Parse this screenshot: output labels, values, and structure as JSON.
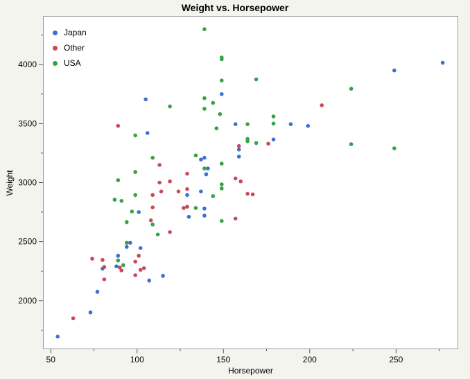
{
  "title": "Weight vs. Horsepower",
  "axes": {
    "x": {
      "label": "Horsepower",
      "major_ticks": [
        50,
        100,
        150,
        200,
        250
      ],
      "minor_ticks": [
        75,
        125,
        175,
        225,
        275
      ]
    },
    "y": {
      "label": "Weight",
      "major_ticks": [
        2000,
        2500,
        3000,
        3500,
        4000
      ],
      "minor_ticks": [
        1750,
        2250,
        2750,
        3250,
        3750,
        4250
      ]
    }
  },
  "legend": {
    "items": [
      {
        "label": "Japan",
        "color": "#3f6fd2"
      },
      {
        "label": "Other",
        "color": "#c94a57"
      },
      {
        "label": "USA",
        "color": "#35a344"
      }
    ]
  },
  "colors": {
    "background": "#f4f4ef",
    "plot_background": "#ffffff",
    "frame": "#9b9b9b",
    "tick": "#555555",
    "text": "#000000"
  },
  "chart_data": {
    "type": "scatter",
    "title": "Weight vs. Horsepower",
    "xlabel": "Horsepower",
    "ylabel": "Weight",
    "xlim": [
      45.5,
      286
    ],
    "ylim": [
      1588,
      4412
    ],
    "legend_position": "top-left-inside",
    "grid": false,
    "series": [
      {
        "name": "Japan",
        "color": "#3f6fd2",
        "points": [
          [
            54,
            1695
          ],
          [
            73,
            1900
          ],
          [
            77,
            2075
          ],
          [
            80,
            2270
          ],
          [
            88,
            2290
          ],
          [
            89,
            2380
          ],
          [
            94,
            2455
          ],
          [
            96,
            2490
          ],
          [
            102,
            2445
          ],
          [
            107,
            2170
          ],
          [
            115,
            2210
          ],
          [
            101,
            2750
          ],
          [
            130,
            2710
          ],
          [
            139,
            2720
          ],
          [
            129,
            2895
          ],
          [
            137,
            2925
          ],
          [
            139,
            2780
          ],
          [
            140,
            3070
          ],
          [
            137,
            3195
          ],
          [
            139,
            3210
          ],
          [
            141,
            3120
          ],
          [
            106,
            3420
          ],
          [
            105,
            3705
          ],
          [
            149,
            3750
          ],
          [
            157,
            3495
          ],
          [
            159,
            3280
          ],
          [
            159,
            3220
          ],
          [
            179,
            3365
          ],
          [
            189,
            3495
          ],
          [
            199,
            3480
          ],
          [
            249,
            3950
          ],
          [
            277,
            4015
          ]
        ]
      },
      {
        "name": "Other",
        "color": "#c94a57",
        "points": [
          [
            63,
            1850
          ],
          [
            74,
            2355
          ],
          [
            80,
            2345
          ],
          [
            81,
            2285
          ],
          [
            81,
            2180
          ],
          [
            90,
            2280
          ],
          [
            91,
            2255
          ],
          [
            99,
            2330
          ],
          [
            99,
            2215
          ],
          [
            101,
            2380
          ],
          [
            102,
            2260
          ],
          [
            104,
            2275
          ],
          [
            119,
            2580
          ],
          [
            89,
            3480
          ],
          [
            113,
            3150
          ],
          [
            113,
            3000
          ],
          [
            119,
            3010
          ],
          [
            109,
            2895
          ],
          [
            114,
            2925
          ],
          [
            124,
            2925
          ],
          [
            129,
            2945
          ],
          [
            129,
            3075
          ],
          [
            127,
            2785
          ],
          [
            129,
            2795
          ],
          [
            109,
            2790
          ],
          [
            108,
            2680
          ],
          [
            157,
            2695
          ],
          [
            157,
            3035
          ],
          [
            160,
            3010
          ],
          [
            159,
            3310
          ],
          [
            164,
            2905
          ],
          [
            167,
            2900
          ],
          [
            176,
            3330
          ],
          [
            207,
            3655
          ]
        ]
      },
      {
        "name": "USA",
        "color": "#35a344",
        "points": [
          [
            94,
            2490
          ],
          [
            89,
            2340
          ],
          [
            92,
            2300
          ],
          [
            112,
            2560
          ],
          [
            109,
            2645
          ],
          [
            94,
            2665
          ],
          [
            87,
            2855
          ],
          [
            91,
            2845
          ],
          [
            97,
            2755
          ],
          [
            99,
            2895
          ],
          [
            89,
            3020
          ],
          [
            99,
            3090
          ],
          [
            99,
            3400
          ],
          [
            119,
            3645
          ],
          [
            109,
            3210
          ],
          [
            134,
            3230
          ],
          [
            139,
            3120
          ],
          [
            144,
            2885
          ],
          [
            149,
            2985
          ],
          [
            149,
            2950
          ],
          [
            149,
            2675
          ],
          [
            134,
            2785
          ],
          [
            149,
            3160
          ],
          [
            139,
            3715
          ],
          [
            144,
            3675
          ],
          [
            139,
            3625
          ],
          [
            148,
            3580
          ],
          [
            139,
            4300
          ],
          [
            149,
            4060
          ],
          [
            149,
            4045
          ],
          [
            149,
            3865
          ],
          [
            146,
            3460
          ],
          [
            164,
            3495
          ],
          [
            164,
            3370
          ],
          [
            164,
            3350
          ],
          [
            169,
            3335
          ],
          [
            169,
            3875
          ],
          [
            179,
            3560
          ],
          [
            179,
            3500
          ],
          [
            224,
            3795
          ],
          [
            224,
            3325
          ],
          [
            249,
            3290
          ]
        ]
      }
    ]
  }
}
